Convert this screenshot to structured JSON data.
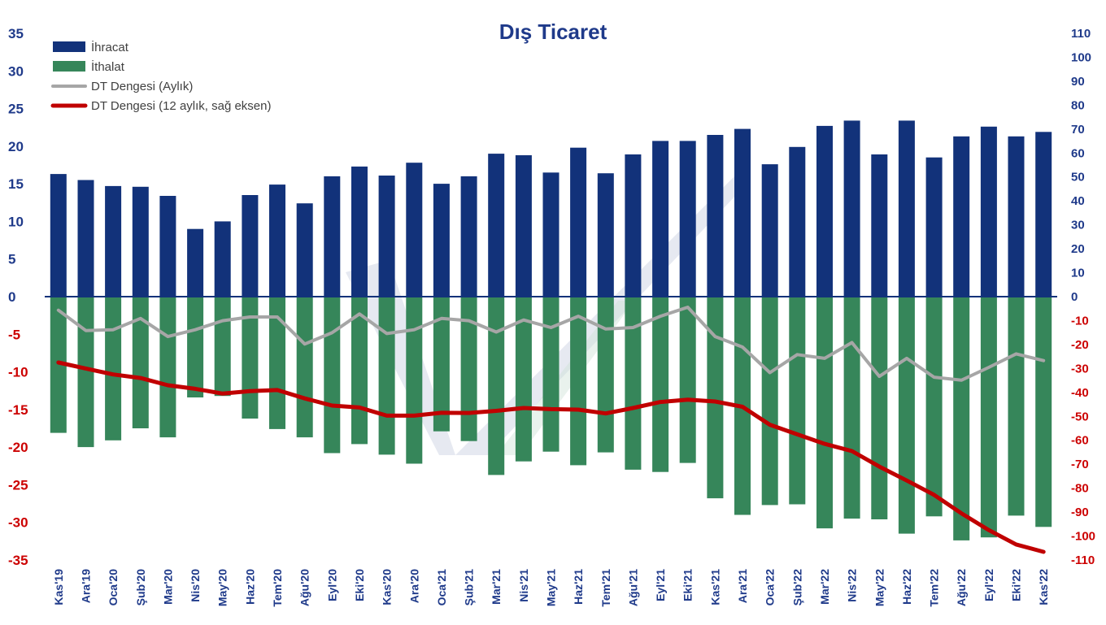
{
  "chart_data": {
    "type": "bar",
    "title": "Dış Ticaret",
    "categories": [
      "Kas'19",
      "Ara'19",
      "Oca'20",
      "Şub'20",
      "Mar'20",
      "Nis'20",
      "May'20",
      "Haz'20",
      "Tem'20",
      "Ağu'20",
      "Eyl'20",
      "Eki'20",
      "Kas'20",
      "Ara'20",
      "Oca'21",
      "Şub'21",
      "Mar'21",
      "Nis'21",
      "May'21",
      "Haz'21",
      "Tem'21",
      "Ağu'21",
      "Eyl'21",
      "Eki'21",
      "Kas'21",
      "Ara'21",
      "Oca'22",
      "Şub'22",
      "Mar'22",
      "Nis'22",
      "May'22",
      "Haz'22",
      "Tem'22",
      "Ağu'22",
      "Eyl'22",
      "Eki'22",
      "Kas'22"
    ],
    "series": [
      {
        "name": "İhracat",
        "kind": "bar",
        "axis": "left",
        "color": "#12327a",
        "values": [
          16.3,
          15.5,
          14.7,
          14.6,
          13.4,
          9.0,
          10.0,
          13.5,
          14.9,
          12.4,
          16.0,
          17.3,
          16.1,
          17.8,
          15.0,
          16.0,
          19.0,
          18.8,
          16.5,
          19.8,
          16.4,
          18.9,
          20.7,
          20.7,
          21.5,
          22.3,
          17.6,
          19.9,
          22.7,
          23.4,
          18.9,
          23.4,
          18.5,
          21.3,
          22.6,
          21.3,
          21.9
        ]
      },
      {
        "name": "İthalat",
        "kind": "bar",
        "axis": "left",
        "color": "#36865a",
        "values": [
          -18.1,
          -20.0,
          -19.1,
          -17.5,
          -18.7,
          -13.4,
          -13.2,
          -16.2,
          -17.6,
          -18.7,
          -20.8,
          -19.6,
          -21.0,
          -22.2,
          -17.9,
          -19.2,
          -23.7,
          -21.9,
          -20.6,
          -22.4,
          -20.7,
          -23.0,
          -23.3,
          -22.1,
          -26.8,
          -29.0,
          -27.7,
          -27.6,
          -30.8,
          -29.5,
          -29.6,
          -31.5,
          -29.2,
          -32.4,
          -32.0,
          -29.1,
          -30.6
        ]
      },
      {
        "name": "DT Dengesi (Aylık)",
        "kind": "line",
        "axis": "left",
        "color": "#a6a6a6",
        "values": [
          -1.8,
          -4.5,
          -4.4,
          -2.9,
          -5.3,
          -4.4,
          -3.2,
          -2.7,
          -2.7,
          -6.3,
          -4.8,
          -2.3,
          -4.9,
          -4.4,
          -2.9,
          -3.2,
          -4.7,
          -3.1,
          -4.1,
          -2.6,
          -4.3,
          -4.1,
          -2.6,
          -1.4,
          -5.3,
          -6.7,
          -10.1,
          -7.7,
          -8.2,
          -6.1,
          -10.6,
          -8.2,
          -10.7,
          -11.1,
          -9.4,
          -7.6,
          -8.5
        ]
      },
      {
        "name": "DT Dengesi (12 aylık, sağ eksen)",
        "kind": "line",
        "axis": "right",
        "color": "#c00000",
        "values": [
          -27.5,
          -30,
          -32.5,
          -34,
          -37,
          -38.5,
          -40.5,
          -39.5,
          -39,
          -42.5,
          -45.5,
          -46.3,
          -49.7,
          -49.7,
          -48.5,
          -48.6,
          -47.7,
          -46.5,
          -47,
          -47.2,
          -48.8,
          -46.5,
          -44,
          -43,
          -43.8,
          -46,
          -53.5,
          -57.5,
          -61.5,
          -64.5,
          -71,
          -76.8,
          -82.8,
          -90.5,
          -97.5,
          -103.5,
          -106.6
        ]
      }
    ],
    "left_axis": {
      "min": -35,
      "max": 35,
      "step": 5,
      "positive_color": "#1f3a8a",
      "negative_color": "#cc0000"
    },
    "right_axis": {
      "min": -110,
      "max": 110,
      "step": 10,
      "positive_color": "#1f3a8a",
      "negative_color": "#cc0000"
    },
    "legend_position": "top-left",
    "grid": false
  }
}
